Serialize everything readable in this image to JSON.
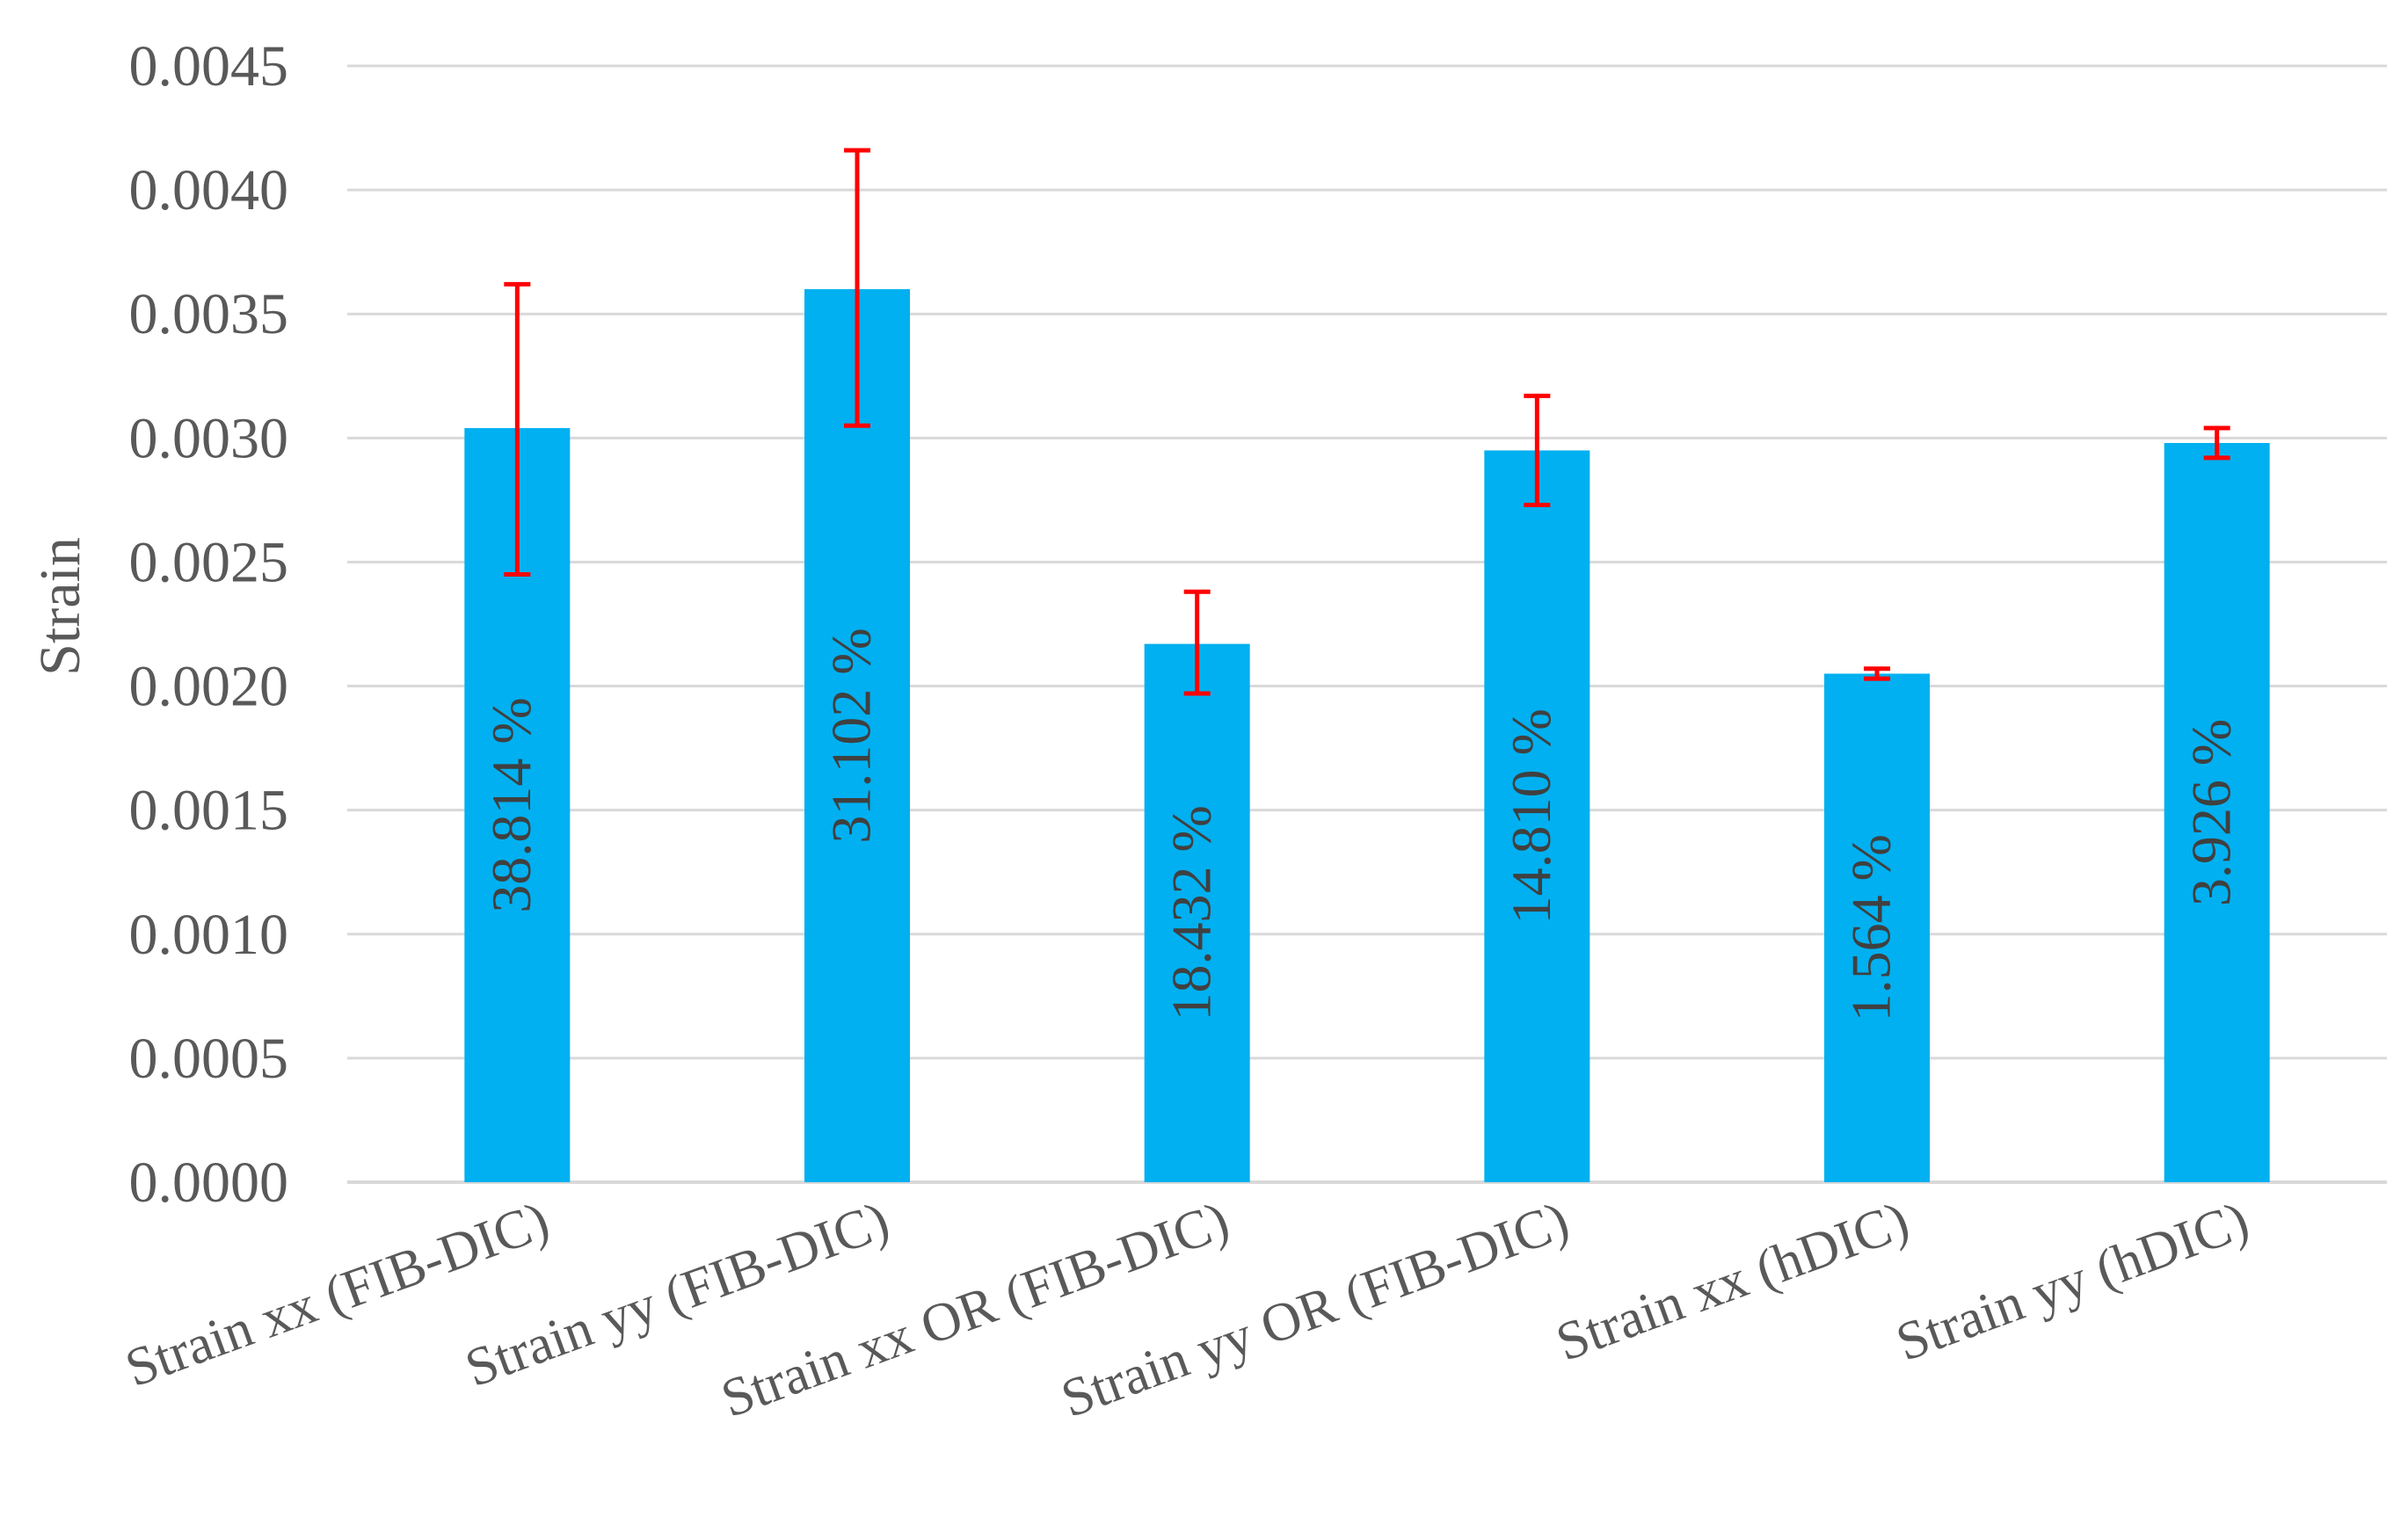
{
  "chart_data": {
    "type": "bar",
    "title": "",
    "xlabel": "",
    "ylabel": "Strain",
    "ylim": [
      0,
      0.0045
    ],
    "y_ticks": [
      "0.0000",
      "0.0005",
      "0.0010",
      "0.0015",
      "0.0020",
      "0.0025",
      "0.0030",
      "0.0035",
      "0.0040",
      "0.0045"
    ],
    "grid": true,
    "legend": "none",
    "categories": [
      "Strain xx (FIB-DIC)",
      "Strain yy (FIB-DIC)",
      "Strain xx OR (FIB-DIC)",
      "Strain yy OR (FIB-DIC)",
      "Strain xx (hDIC)",
      "Strain yy (hDIC)"
    ],
    "values": [
      0.00304,
      0.0036,
      0.00217,
      0.00295,
      0.00205,
      0.00298
    ],
    "error_upper": [
      0.00362,
      0.00416,
      0.00238,
      0.00317,
      0.00207,
      0.00304
    ],
    "error_lower": [
      0.00245,
      0.00305,
      0.00197,
      0.00273,
      0.00203,
      0.00292
    ],
    "data_labels": [
      "38.814 %",
      "31.102 %",
      "18.432 %",
      "14.810 %",
      "1.564 %",
      "3.926 %"
    ],
    "colors": {
      "bar": "#00B0F0",
      "error_bar": "#FF0000",
      "grid": "#D9D9D9",
      "axis": "#D9D9D9",
      "text": "#595959"
    }
  }
}
